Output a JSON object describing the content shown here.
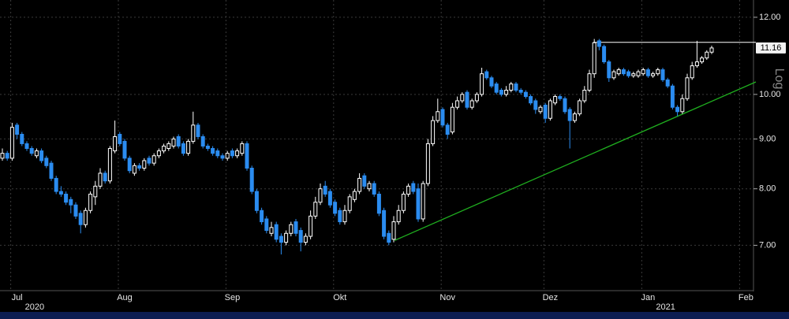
{
  "chart_data": {
    "type": "candlestick",
    "log_scale": true,
    "scale_label": "Log",
    "grid": true,
    "up_color": "#ffffff",
    "down_color": "#2b8cf0",
    "ylim": [
      6.3,
      12.5
    ],
    "yticks": [
      {
        "value": 7,
        "label": "7.00"
      },
      {
        "value": 8,
        "label": "8.00"
      },
      {
        "value": 9,
        "label": "9.00"
      },
      {
        "value": 10,
        "label": "10.00"
      },
      {
        "value": 12,
        "label": "12.00"
      }
    ],
    "last_price": 11.16,
    "resistance": {
      "value": 11.31,
      "color": "#ffffff"
    },
    "trendline": {
      "values": [
        7.08,
        10.3
      ],
      "color": "#1fae1f"
    },
    "categories": [
      null,
      null,
      null,
      "Jul",
      null,
      null,
      null,
      null,
      null,
      null,
      null,
      null,
      null,
      null,
      null,
      null,
      null,
      null,
      null,
      null,
      null,
      null,
      null,
      null,
      null,
      "Aug",
      null,
      null,
      null,
      null,
      null,
      null,
      null,
      null,
      null,
      null,
      null,
      null,
      null,
      null,
      null,
      null,
      null,
      null,
      null,
      null,
      null,
      "Sep",
      null,
      null,
      null,
      null,
      null,
      null,
      null,
      null,
      null,
      null,
      null,
      null,
      null,
      null,
      null,
      null,
      null,
      null,
      null,
      null,
      null,
      "Okt",
      null,
      null,
      null,
      null,
      null,
      null,
      null,
      null,
      null,
      null,
      null,
      null,
      null,
      null,
      null,
      null,
      null,
      null,
      null,
      null,
      null,
      "Nov",
      null,
      null,
      null,
      null,
      null,
      null,
      null,
      null,
      null,
      null,
      null,
      null,
      null,
      null,
      null,
      null,
      null,
      null,
      null,
      null,
      "Dez",
      null,
      null,
      null,
      null,
      null,
      null,
      null,
      null,
      null,
      null,
      null,
      null,
      null,
      null,
      null,
      null,
      null,
      null,
      null,
      "Jan",
      null,
      null,
      null,
      null,
      null,
      null,
      null,
      null,
      null,
      null,
      null,
      null,
      null,
      null,
      null,
      null,
      null,
      null,
      null,
      "Feb",
      null,
      null
    ],
    "years": [
      null,
      null,
      null,
      "2020",
      null,
      null,
      null,
      null,
      null,
      null,
      null,
      null,
      null,
      null,
      null,
      null,
      null,
      null,
      null,
      null,
      null,
      null,
      null,
      null,
      null,
      null,
      null,
      null,
      null,
      null,
      null,
      null,
      null,
      null,
      null,
      null,
      null,
      null,
      null,
      null,
      null,
      null,
      null,
      null,
      null,
      null,
      null,
      null,
      null,
      null,
      null,
      null,
      null,
      null,
      null,
      null,
      null,
      null,
      null,
      null,
      null,
      null,
      null,
      null,
      null,
      null,
      null,
      null,
      null,
      null,
      null,
      null,
      null,
      null,
      null,
      null,
      null,
      null,
      null,
      null,
      null,
      null,
      null,
      null,
      null,
      null,
      null,
      null,
      null,
      null,
      null,
      null,
      null,
      null,
      null,
      null,
      null,
      null,
      null,
      null,
      null,
      null,
      null,
      null,
      null,
      null,
      null,
      null,
      null,
      null,
      null,
      null,
      null,
      null,
      null,
      null,
      null,
      null,
      null,
      null,
      null,
      null,
      null,
      null,
      null,
      null,
      null,
      null,
      null,
      null,
      null,
      null,
      "2021",
      null,
      null,
      null,
      null,
      null,
      null,
      null,
      null,
      null,
      null,
      null,
      null,
      null,
      null,
      null,
      null,
      null,
      null,
      null,
      null,
      null,
      null
    ],
    "open": [
      8.6,
      8.7,
      8.6,
      9.3,
      9.1,
      8.9,
      8.8,
      8.65,
      8.75,
      8.6,
      8.5,
      8.2,
      7.95,
      7.9,
      7.8,
      7.7,
      7.55,
      7.35,
      7.6,
      7.85,
      8.05,
      8.3,
      8.15,
      8.75,
      9.1,
      8.95,
      8.6,
      8.3,
      8.45,
      8.4,
      8.6,
      8.5,
      8.65,
      8.75,
      8.8,
      8.85,
      9.05,
      8.9,
      8.7,
      8.95,
      9.3,
      9.05,
      8.85,
      8.8,
      8.75,
      8.65,
      8.6,
      8.75,
      8.65,
      8.7,
      8.9,
      8.4,
      7.95,
      7.6,
      7.45,
      7.2,
      7.35,
      7.15,
      7.05,
      7.2,
      7.4,
      7.25,
      7.05,
      7.15,
      7.5,
      7.75,
      8.05,
      7.95,
      7.75,
      7.6,
      7.4,
      7.6,
      7.8,
      7.95,
      8.25,
      8.0,
      8.1,
      7.9,
      7.6,
      7.2,
      7.1,
      7.4,
      7.6,
      7.9,
      8.1,
      8.0,
      7.45,
      8.1,
      8.9,
      9.4,
      9.65,
      9.3,
      9.15,
      9.7,
      9.85,
      10.05,
      9.7,
      9.85,
      10.0,
      10.55,
      10.4,
      10.25,
      10.1,
      10.0,
      10.1,
      10.25,
      10.1,
      10.05,
      9.95,
      9.85,
      9.6,
      9.75,
      9.45,
      9.8,
      9.95,
      9.9,
      9.65,
      9.4,
      9.55,
      9.85,
      10.1,
      10.5,
      11.35,
      11.2,
      10.8,
      10.4,
      10.5,
      10.6,
      10.55,
      10.45,
      10.45,
      10.5,
      10.6,
      10.45,
      10.5,
      10.6,
      10.35,
      10.2,
      9.7,
      9.6,
      9.9,
      10.4,
      10.7,
      10.8,
      10.9,
      11.05,
      null,
      null,
      null,
      null,
      null,
      null,
      null,
      null,
      null
    ],
    "high": [
      8.8,
      8.75,
      9.35,
      9.35,
      9.15,
      8.95,
      8.85,
      8.8,
      8.8,
      8.65,
      8.55,
      8.25,
      8.05,
      7.95,
      7.85,
      7.75,
      7.6,
      7.65,
      7.95,
      8.15,
      8.4,
      8.35,
      8.85,
      9.4,
      9.15,
      9.0,
      8.65,
      8.5,
      8.5,
      8.6,
      8.65,
      8.7,
      8.8,
      8.9,
      8.95,
      9.05,
      9.1,
      8.95,
      9.0,
      9.6,
      9.35,
      9.1,
      8.9,
      8.85,
      8.8,
      8.7,
      8.75,
      8.8,
      8.8,
      8.95,
      8.95,
      8.45,
      8.0,
      7.65,
      7.5,
      7.4,
      7.4,
      7.2,
      7.25,
      7.4,
      7.45,
      7.3,
      7.2,
      7.6,
      7.85,
      8.1,
      8.15,
      8.0,
      7.8,
      7.65,
      7.7,
      7.9,
      8.0,
      8.3,
      8.3,
      8.15,
      8.15,
      7.95,
      7.65,
      7.25,
      7.5,
      7.7,
      7.95,
      8.1,
      8.15,
      8.1,
      8.15,
      9.0,
      9.5,
      9.9,
      9.7,
      9.35,
      9.8,
      9.95,
      10.05,
      10.1,
      9.9,
      10.05,
      10.65,
      10.6,
      10.45,
      10.3,
      10.15,
      10.2,
      10.3,
      10.3,
      10.15,
      10.1,
      10.0,
      9.9,
      9.75,
      9.8,
      9.9,
      10.0,
      10.0,
      9.95,
      9.7,
      9.6,
      9.9,
      10.2,
      10.6,
      11.4,
      11.4,
      11.25,
      10.85,
      10.6,
      10.65,
      10.65,
      10.6,
      10.55,
      10.6,
      10.65,
      10.65,
      10.55,
      10.65,
      10.65,
      10.4,
      10.25,
      9.75,
      10.0,
      10.5,
      10.8,
      11.35,
      10.95,
      11.1,
      11.22,
      null,
      null,
      null,
      null,
      null,
      null,
      null,
      null,
      null
    ],
    "low": [
      8.55,
      8.55,
      8.55,
      9.0,
      8.85,
      8.75,
      8.65,
      8.6,
      8.5,
      8.4,
      8.15,
      7.9,
      7.85,
      7.7,
      7.55,
      7.45,
      7.2,
      7.3,
      7.55,
      7.7,
      8.0,
      8.1,
      8.1,
      8.7,
      8.85,
      8.55,
      8.3,
      8.25,
      8.35,
      8.35,
      8.45,
      8.45,
      8.6,
      8.7,
      8.75,
      8.8,
      8.8,
      8.65,
      8.65,
      8.9,
      9.0,
      8.8,
      8.75,
      8.65,
      8.6,
      8.55,
      8.55,
      8.6,
      8.6,
      8.65,
      8.35,
      7.9,
      7.55,
      7.35,
      7.2,
      7.15,
      7.05,
      6.85,
      7.0,
      7.15,
      7.15,
      6.9,
      7.0,
      7.1,
      7.45,
      7.7,
      7.85,
      7.65,
      7.5,
      7.35,
      7.35,
      7.55,
      7.75,
      7.9,
      8.0,
      7.95,
      7.85,
      7.5,
      7.1,
      7.0,
      7.05,
      7.35,
      7.55,
      7.85,
      7.9,
      7.4,
      7.4,
      8.05,
      8.85,
      9.35,
      9.25,
      9.0,
      9.1,
      9.65,
      9.8,
      9.65,
      9.65,
      9.8,
      9.95,
      10.35,
      10.15,
      10.0,
      9.95,
      9.95,
      10.05,
      10.05,
      10.0,
      9.9,
      9.75,
      9.55,
      9.55,
      9.35,
      9.4,
      9.75,
      9.85,
      9.55,
      8.8,
      9.35,
      9.5,
      9.8,
      10.05,
      10.4,
      11.1,
      10.75,
      10.3,
      10.35,
      10.45,
      10.45,
      10.4,
      10.4,
      10.4,
      10.45,
      10.4,
      10.4,
      10.45,
      10.3,
      10.15,
      9.65,
      9.5,
      9.55,
      9.85,
      10.35,
      10.65,
      10.75,
      10.85,
      11.0,
      null,
      null,
      null,
      null,
      null,
      null,
      null,
      null,
      null
    ],
    "close": [
      8.7,
      8.6,
      9.25,
      9.1,
      8.9,
      8.8,
      8.7,
      8.75,
      8.55,
      8.45,
      8.2,
      7.95,
      7.9,
      7.75,
      7.7,
      7.5,
      7.35,
      7.6,
      7.9,
      8.05,
      8.3,
      8.15,
      8.8,
      9.05,
      8.9,
      8.6,
      8.35,
      8.45,
      8.4,
      8.55,
      8.5,
      8.65,
      8.75,
      8.85,
      8.9,
      9.0,
      8.85,
      8.7,
      8.95,
      9.3,
      9.05,
      8.85,
      8.8,
      8.7,
      8.65,
      8.6,
      8.7,
      8.65,
      8.75,
      8.9,
      8.4,
      7.95,
      7.6,
      7.4,
      7.25,
      7.3,
      7.1,
      7.05,
      7.2,
      7.35,
      7.2,
      7.05,
      7.15,
      7.5,
      7.75,
      8.0,
      7.9,
      7.7,
      7.55,
      7.4,
      7.6,
      7.85,
      7.95,
      8.2,
      8.05,
      8.1,
      7.9,
      7.55,
      7.15,
      7.05,
      7.4,
      7.6,
      7.9,
      8.05,
      7.95,
      7.45,
      8.1,
      8.9,
      9.4,
      9.6,
      9.3,
      9.1,
      9.7,
      9.85,
      10.0,
      9.7,
      9.85,
      10.0,
      10.5,
      10.4,
      10.2,
      10.05,
      10.0,
      10.1,
      10.25,
      10.1,
      10.05,
      9.95,
      9.8,
      9.65,
      9.7,
      9.45,
      9.85,
      9.95,
      9.9,
      9.6,
      9.4,
      9.55,
      9.85,
      10.1,
      10.5,
      11.3,
      11.2,
      10.8,
      10.4,
      10.55,
      10.6,
      10.5,
      10.45,
      10.5,
      10.55,
      10.6,
      10.45,
      10.5,
      10.6,
      10.35,
      10.2,
      9.7,
      9.6,
      9.9,
      10.4,
      10.7,
      10.8,
      10.9,
      11.05,
      11.16,
      null,
      null,
      null,
      null,
      null,
      null,
      null,
      null,
      null
    ]
  }
}
